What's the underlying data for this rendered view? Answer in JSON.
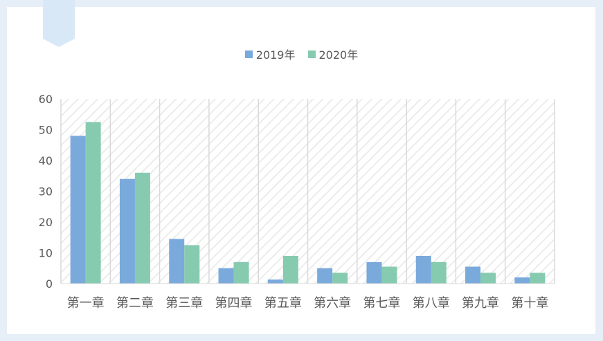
{
  "chart_data": {
    "type": "bar",
    "title": "",
    "xlabel": "",
    "ylabel": "",
    "categories": [
      "第一章",
      "第二章",
      "第三章",
      "第四章",
      "第五章",
      "第六章",
      "第七章",
      "第八章",
      "第九章",
      "第十章"
    ],
    "series": [
      {
        "name": "2019年",
        "color": "#7aa9dc",
        "values": [
          48,
          34,
          14.5,
          5,
          1.3,
          5,
          7,
          9,
          5.5,
          2
        ]
      },
      {
        "name": "2020年",
        "color": "#86cbb0",
        "values": [
          52.5,
          36,
          12.5,
          7,
          9,
          3.5,
          5.5,
          7,
          3.5,
          3.5
        ]
      }
    ],
    "ylim": [
      0,
      60
    ],
    "yticks": [
      0,
      10,
      20,
      30,
      40,
      50,
      60
    ],
    "grid": "vertical category separators with diagonal hatched background",
    "legend_position": "top-center"
  }
}
